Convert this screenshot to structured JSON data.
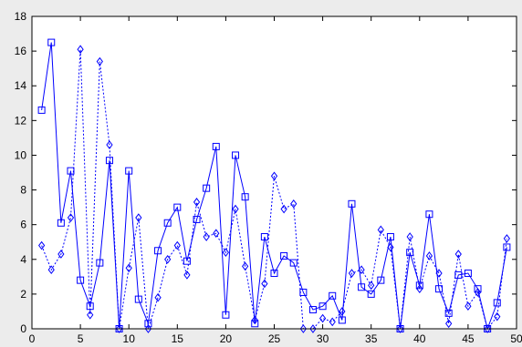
{
  "colors": {
    "figure_bg": "#ececec",
    "plot_bg": "#ffffff",
    "axes": "#000000",
    "series": "#0000ff"
  },
  "chart_data": {
    "type": "line",
    "title": "",
    "xlabel": "",
    "ylabel": "",
    "xlim": [
      0,
      50
    ],
    "ylim": [
      0,
      18
    ],
    "xticks": [
      0,
      5,
      10,
      15,
      20,
      25,
      30,
      35,
      40,
      45,
      50
    ],
    "yticks": [
      0,
      2,
      4,
      6,
      8,
      10,
      12,
      14,
      16,
      18
    ],
    "grid": false,
    "legend": false,
    "x": [
      1,
      2,
      3,
      4,
      5,
      6,
      7,
      8,
      9,
      10,
      11,
      12,
      13,
      14,
      15,
      16,
      17,
      18,
      19,
      20,
      21,
      22,
      23,
      24,
      25,
      26,
      27,
      28,
      29,
      30,
      31,
      32,
      33,
      34,
      35,
      36,
      37,
      38,
      39,
      40,
      41,
      42,
      43,
      44,
      45,
      46,
      47,
      48,
      49
    ],
    "series": [
      {
        "style": "solid",
        "marker": "square",
        "color": "#0000ff",
        "values": [
          12.6,
          16.5,
          6.1,
          9.1,
          2.8,
          1.3,
          3.8,
          9.7,
          0.0,
          9.1,
          1.7,
          0.3,
          4.5,
          6.1,
          7.0,
          3.9,
          6.3,
          8.1,
          10.5,
          0.8,
          10.0,
          7.6,
          0.3,
          5.3,
          3.2,
          4.2,
          3.8,
          2.1,
          1.1,
          1.3,
          1.9,
          0.5,
          7.2,
          2.4,
          2.0,
          2.8,
          5.3,
          0.0,
          4.4,
          2.5,
          6.6,
          2.3,
          0.9,
          3.1,
          3.2,
          2.3,
          0.0,
          1.5,
          4.7
        ]
      },
      {
        "style": "dotted",
        "marker": "diamond",
        "color": "#0000ff",
        "values": [
          4.8,
          3.4,
          4.3,
          6.4,
          16.1,
          0.8,
          15.4,
          10.6,
          0.0,
          3.5,
          6.4,
          0.0,
          1.8,
          4.0,
          4.8,
          3.1,
          7.3,
          5.3,
          5.5,
          4.4,
          6.9,
          3.6,
          0.5,
          2.6,
          8.8,
          6.9,
          7.2,
          0.0,
          0.0,
          0.6,
          0.4,
          1.0,
          3.2,
          3.4,
          2.5,
          5.7,
          4.7,
          0.0,
          5.3,
          2.3,
          4.2,
          3.2,
          0.3,
          4.3,
          1.3,
          2.1,
          0.0,
          0.7,
          5.2
        ]
      }
    ]
  }
}
